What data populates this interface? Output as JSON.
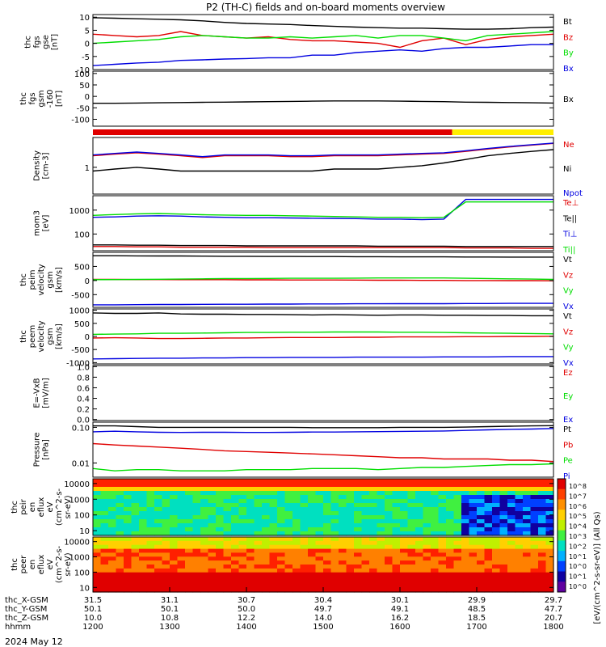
{
  "title": "P2 (TH-C) fields and on-board moments overview",
  "colors": {
    "black": "#000000",
    "red": "#e00000",
    "green": "#00dd00",
    "blue": "#0000e0",
    "yellow": "#ffee00"
  },
  "panels": [
    {
      "id": "fgs_gse",
      "ylabel": [
        "thc",
        "fgs",
        "gse",
        "[nT]"
      ],
      "ticks": [
        "10",
        "5",
        "0",
        "-5",
        "-10"
      ],
      "tickvals": [
        10,
        5,
        0,
        -5,
        -10
      ],
      "ylim": [
        -10,
        11
      ],
      "legend": [
        {
          "label": "Bt",
          "color": "black"
        },
        {
          "label": "Bz",
          "color": "red"
        },
        {
          "label": "By",
          "color": "green"
        },
        {
          "label": "Bx",
          "color": "blue"
        }
      ],
      "series": [
        {
          "name": "Bt",
          "color": "black",
          "values": [
            9.8,
            9.6,
            9.4,
            9.2,
            9.0,
            8.6,
            8.0,
            7.6,
            7.4,
            7.2,
            6.8,
            6.5,
            6.2,
            6.0,
            5.8,
            5.8,
            5.6,
            5.4,
            5.4,
            5.6,
            6.0,
            6.2
          ]
        },
        {
          "name": "Bz",
          "color": "red",
          "values": [
            3.5,
            3.0,
            2.5,
            3.0,
            4.5,
            3.0,
            2.5,
            2.0,
            2.5,
            1.5,
            1.0,
            1.0,
            0.5,
            0.0,
            -1.5,
            1.0,
            2.0,
            -0.5,
            1.5,
            2.5,
            3.0,
            3.5
          ]
        },
        {
          "name": "By",
          "color": "green",
          "values": [
            0.0,
            0.5,
            1.0,
            1.5,
            2.5,
            3.0,
            2.5,
            2.0,
            2.0,
            2.5,
            2.0,
            2.5,
            3.0,
            2.0,
            3.0,
            3.0,
            2.0,
            1.0,
            3.0,
            3.5,
            4.0,
            4.5
          ]
        },
        {
          "name": "Bx",
          "color": "blue",
          "values": [
            -8.5,
            -8.0,
            -7.5,
            -7.2,
            -6.5,
            -6.3,
            -6.0,
            -5.8,
            -5.5,
            -5.5,
            -4.5,
            -4.5,
            -3.5,
            -3.0,
            -2.5,
            -3.0,
            -2.0,
            -1.5,
            -1.5,
            -1.0,
            -0.5,
            -0.5
          ]
        }
      ]
    },
    {
      "id": "fgs_gsm",
      "ylabel": [
        "thc",
        "fgs",
        "gsm",
        "-160",
        "[nT]"
      ],
      "ticks": [
        "100",
        "50",
        "0",
        "-50",
        "-100"
      ],
      "tickvals": [
        100,
        50,
        0,
        -50,
        -100
      ],
      "ylim": [
        -130,
        110
      ],
      "legend": [
        {
          "label": "Bx",
          "color": "black"
        }
      ],
      "series": [
        {
          "name": "Bx",
          "color": "black",
          "values": [
            -30,
            -30,
            -29,
            -28,
            -27,
            -26,
            -25,
            -24,
            -23,
            -22,
            -21,
            -20,
            -20,
            -20,
            -21,
            -22,
            -23,
            -25,
            -26,
            -27,
            -28,
            -29
          ]
        }
      ]
    },
    {
      "id": "density",
      "ylabel": [
        "Density",
        "[cm-3]"
      ],
      "ticks": [
        "1"
      ],
      "tickvals": [
        1
      ],
      "ylim": [
        0.2,
        6
      ],
      "log": true,
      "legend": [
        {
          "label": "Ne",
          "color": "red"
        },
        {
          "label": "Ni",
          "color": "black"
        },
        {
          "label": "Npot",
          "color": "blue"
        }
      ],
      "series": [
        {
          "name": "Ne",
          "color": "red",
          "values": [
            2.0,
            2.2,
            2.4,
            2.2,
            2.0,
            1.8,
            2.0,
            2.0,
            2.0,
            1.9,
            1.9,
            2.0,
            2.0,
            2.0,
            2.1,
            2.2,
            2.3,
            2.6,
            3.0,
            3.4,
            3.8,
            4.2
          ]
        },
        {
          "name": "Ni",
          "color": "black",
          "values": [
            0.8,
            0.9,
            1.0,
            0.9,
            0.8,
            0.8,
            0.8,
            0.8,
            0.8,
            0.8,
            0.8,
            0.9,
            0.9,
            0.9,
            1.0,
            1.1,
            1.3,
            1.6,
            2.0,
            2.3,
            2.6,
            2.9
          ]
        },
        {
          "name": "Npot",
          "color": "blue",
          "values": [
            2.1,
            2.3,
            2.5,
            2.3,
            2.1,
            1.9,
            2.1,
            2.1,
            2.1,
            2.0,
            2.0,
            2.1,
            2.1,
            2.1,
            2.2,
            2.3,
            2.4,
            2.7,
            3.1,
            3.5,
            3.9,
            4.3
          ]
        }
      ]
    },
    {
      "id": "moments_temp",
      "ylabel": [
        "mom3",
        "[eV]"
      ],
      "ticks": [
        "1000",
        "100"
      ],
      "tickvals": [
        1000,
        100
      ],
      "ylim": [
        20,
        4000
      ],
      "log": true,
      "legend": [
        {
          "label": "Te⊥",
          "color": "red"
        },
        {
          "label": "Te||",
          "color": "black"
        },
        {
          "label": "Ti⊥",
          "color": "blue"
        },
        {
          "label": "Ti||",
          "color": "green"
        }
      ],
      "series": [
        {
          "name": "Te⊥",
          "color": "red",
          "values": [
            30,
            30,
            29,
            29,
            28,
            28,
            28,
            28,
            27,
            27,
            27,
            27,
            27,
            27,
            27,
            27,
            27,
            26,
            26,
            26,
            25,
            25
          ]
        },
        {
          "name": "Te||",
          "color": "black",
          "values": [
            35,
            35,
            34,
            34,
            33,
            33,
            33,
            32,
            32,
            32,
            32,
            32,
            32,
            31,
            31,
            31,
            31,
            30,
            30,
            30,
            30,
            30
          ]
        },
        {
          "name": "Ti⊥",
          "color": "blue",
          "values": [
            500,
            520,
            560,
            580,
            560,
            520,
            500,
            480,
            480,
            470,
            460,
            450,
            440,
            420,
            420,
            400,
            420,
            2800,
            2800,
            2800,
            2800,
            2800
          ]
        },
        {
          "name": "Ti||",
          "color": "green",
          "values": [
            600,
            650,
            700,
            720,
            680,
            640,
            620,
            600,
            600,
            580,
            560,
            540,
            520,
            500,
            500,
            480,
            500,
            2200,
            2200,
            2200,
            2200,
            2200
          ]
        }
      ]
    },
    {
      "id": "peim_velocity",
      "ylabel": [
        "thc",
        "peim",
        "velocity",
        "gsm",
        "[km/s]"
      ],
      "ticks": [
        "500",
        "0",
        "-500"
      ],
      "tickvals": [
        500,
        0,
        -500
      ],
      "ylim": [
        -950,
        1000
      ],
      "legend": [
        {
          "label": "Vt",
          "color": "black"
        },
        {
          "label": "Vz",
          "color": "red"
        },
        {
          "label": "Vy",
          "color": "green"
        },
        {
          "label": "Vx",
          "color": "blue"
        }
      ],
      "series": [
        {
          "name": "Vt",
          "color": "black",
          "values": [
            880,
            880,
            875,
            870,
            870,
            865,
            860,
            860,
            855,
            855,
            850,
            850,
            845,
            845,
            840,
            840,
            840,
            835,
            835,
            830,
            830,
            830
          ]
        },
        {
          "name": "Vz",
          "color": "red",
          "values": [
            40,
            40,
            35,
            35,
            30,
            30,
            30,
            25,
            25,
            20,
            20,
            20,
            15,
            10,
            10,
            5,
            5,
            0,
            0,
            -5,
            -5,
            -10
          ]
        },
        {
          "name": "Vy",
          "color": "green",
          "values": [
            30,
            35,
            40,
            45,
            50,
            60,
            70,
            70,
            75,
            80,
            80,
            80,
            85,
            90,
            90,
            90,
            90,
            80,
            70,
            60,
            50,
            40
          ]
        },
        {
          "name": "Vx",
          "color": "blue",
          "values": [
            -860,
            -860,
            -855,
            -850,
            -850,
            -845,
            -840,
            -840,
            -835,
            -835,
            -830,
            -830,
            -825,
            -825,
            -820,
            -820,
            -820,
            -815,
            -815,
            -810,
            -810,
            -810
          ]
        }
      ]
    },
    {
      "id": "peem_velocity",
      "ylabel": [
        "thc",
        "peem",
        "velocity",
        "gsm",
        "[km/s]"
      ],
      "ticks": [
        "1000",
        "500",
        "0",
        "-500",
        "-1000"
      ],
      "tickvals": [
        1000,
        500,
        0,
        -500,
        -1000
      ],
      "ylim": [
        -1050,
        1050
      ],
      "legend": [
        {
          "label": "Vt",
          "color": "black"
        },
        {
          "label": "Vz",
          "color": "red"
        },
        {
          "label": "Vy",
          "color": "green"
        },
        {
          "label": "Vx",
          "color": "blue"
        }
      ],
      "series": [
        {
          "name": "Vt",
          "color": "black",
          "values": [
            900,
            880,
            880,
            900,
            860,
            850,
            850,
            840,
            840,
            830,
            820,
            830,
            820,
            810,
            820,
            820,
            810,
            810,
            800,
            800,
            790,
            790
          ]
        },
        {
          "name": "Vz",
          "color": "red",
          "values": [
            -60,
            -50,
            -60,
            -80,
            -80,
            -70,
            -60,
            -60,
            -50,
            -40,
            -40,
            -40,
            -30,
            -30,
            -20,
            -20,
            -20,
            -10,
            -10,
            0,
            0,
            10
          ]
        },
        {
          "name": "Vy",
          "color": "green",
          "values": [
            80,
            90,
            100,
            120,
            120,
            130,
            140,
            150,
            150,
            160,
            160,
            170,
            170,
            170,
            160,
            160,
            150,
            140,
            130,
            120,
            110,
            100
          ]
        },
        {
          "name": "Vx",
          "color": "blue",
          "values": [
            -860,
            -850,
            -840,
            -830,
            -830,
            -820,
            -820,
            -810,
            -810,
            -800,
            -800,
            -800,
            -790,
            -790,
            -790,
            -790,
            -780,
            -780,
            -780,
            -770,
            -770,
            -770
          ]
        }
      ]
    },
    {
      "id": "efield",
      "ylabel": [
        "E=-VxB",
        "[mV/m]"
      ],
      "ticks": [
        "1.0",
        "0.8",
        "0.6",
        "0.4",
        "0.2",
        "0.0"
      ],
      "tickvals": [
        1.0,
        0.8,
        0.6,
        0.4,
        0.2,
        0.0
      ],
      "ylim": [
        -0.02,
        1.02
      ],
      "legend": [
        {
          "label": "Ez",
          "color": "red"
        },
        {
          "label": "Ey",
          "color": "green"
        },
        {
          "label": "Ex",
          "color": "blue"
        }
      ],
      "series": []
    },
    {
      "id": "pressure",
      "ylabel": [
        "Pressure",
        "[nPa]"
      ],
      "ticks": [
        "0.10",
        "0.01"
      ],
      "tickvals": [
        0.1,
        0.01
      ],
      "ylim": [
        0.004,
        0.14
      ],
      "log": true,
      "legend": [
        {
          "label": "Pt",
          "color": "black"
        },
        {
          "label": "Pb",
          "color": "red"
        },
        {
          "label": "Pe",
          "color": "green"
        },
        {
          "label": "Pi",
          "color": "blue"
        }
      ],
      "series": [
        {
          "name": "Pt",
          "color": "black",
          "values": [
            0.11,
            0.11,
            0.105,
            0.1,
            0.1,
            0.1,
            0.1,
            0.1,
            0.1,
            0.1,
            0.098,
            0.098,
            0.098,
            0.098,
            0.1,
            0.1,
            0.1,
            0.102,
            0.105,
            0.108,
            0.11,
            0.112
          ]
        },
        {
          "name": "Pb",
          "color": "red",
          "values": [
            0.035,
            0.032,
            0.03,
            0.028,
            0.026,
            0.024,
            0.022,
            0.021,
            0.02,
            0.019,
            0.018,
            0.017,
            0.016,
            0.015,
            0.014,
            0.014,
            0.013,
            0.013,
            0.013,
            0.012,
            0.012,
            0.011
          ]
        },
        {
          "name": "Pe",
          "color": "green",
          "values": [
            0.007,
            0.006,
            0.0065,
            0.0065,
            0.006,
            0.006,
            0.006,
            0.0065,
            0.0065,
            0.0065,
            0.007,
            0.007,
            0.007,
            0.0065,
            0.007,
            0.0075,
            0.0075,
            0.008,
            0.0085,
            0.009,
            0.009,
            0.0095
          ]
        },
        {
          "name": "Pi",
          "color": "blue",
          "values": [
            0.075,
            0.078,
            0.075,
            0.073,
            0.072,
            0.073,
            0.073,
            0.072,
            0.072,
            0.073,
            0.074,
            0.074,
            0.075,
            0.076,
            0.077,
            0.078,
            0.079,
            0.082,
            0.085,
            0.088,
            0.09,
            0.093
          ]
        }
      ]
    },
    {
      "id": "peir_eflux",
      "ylabel": [
        "thc",
        "peir",
        "en",
        "eflux",
        "eV",
        "(cm^2-s-",
        "sr-eV)"
      ],
      "ticks": [
        "10000",
        "1000",
        "100",
        "10"
      ],
      "tickvals": [
        10000,
        1000,
        100,
        10
      ],
      "ylim": [
        5,
        20000
      ],
      "log": true,
      "spectrogram": true
    },
    {
      "id": "peer_eflux",
      "ylabel": [
        "thc",
        "peer",
        "en",
        "eflux",
        "eV",
        "(cm^2-s-",
        "sr-eV)"
      ],
      "ticks": [
        "10000",
        "1000",
        "100",
        "10"
      ],
      "tickvals": [
        10000,
        1000,
        100,
        10
      ],
      "ylim": [
        5,
        20000
      ],
      "log": true,
      "spectrogram": true
    }
  ],
  "colorbar": {
    "label": "[eV/(cm^2-s-sr-eV)] (All Qs)",
    "ticks": [
      "10^8",
      "10^7",
      "10^6",
      "10^5",
      "10^4",
      "10^3",
      "10^2",
      "10^1",
      "10^0",
      "10^1",
      "10^0"
    ]
  },
  "xaxis": {
    "rows": [
      {
        "label": "thc_X-GSM",
        "values": [
          "31.5",
          "31.1",
          "30.7",
          "30.4",
          "30.1",
          "29.9",
          "29.7"
        ]
      },
      {
        "label": "thc_Y-GSM",
        "values": [
          "50.1",
          "50.1",
          "50.0",
          "49.7",
          "49.1",
          "48.5",
          "47.7"
        ]
      },
      {
        "label": "thc_Z-GSM",
        "values": [
          "10.0",
          "10.8",
          "12.2",
          "14.0",
          "16.2",
          "18.5",
          "20.7"
        ]
      },
      {
        "label": "hhmm",
        "values": [
          "1200",
          "1300",
          "1400",
          "1500",
          "1600",
          "1700",
          "1800"
        ]
      }
    ],
    "date": "2024 May 12",
    "tick_count": 7
  },
  "modebar": {
    "segments": [
      {
        "color": "red",
        "from": 0,
        "to": 0.78
      },
      {
        "color": "yellow",
        "from": 0.78,
        "to": 1.0
      }
    ]
  }
}
